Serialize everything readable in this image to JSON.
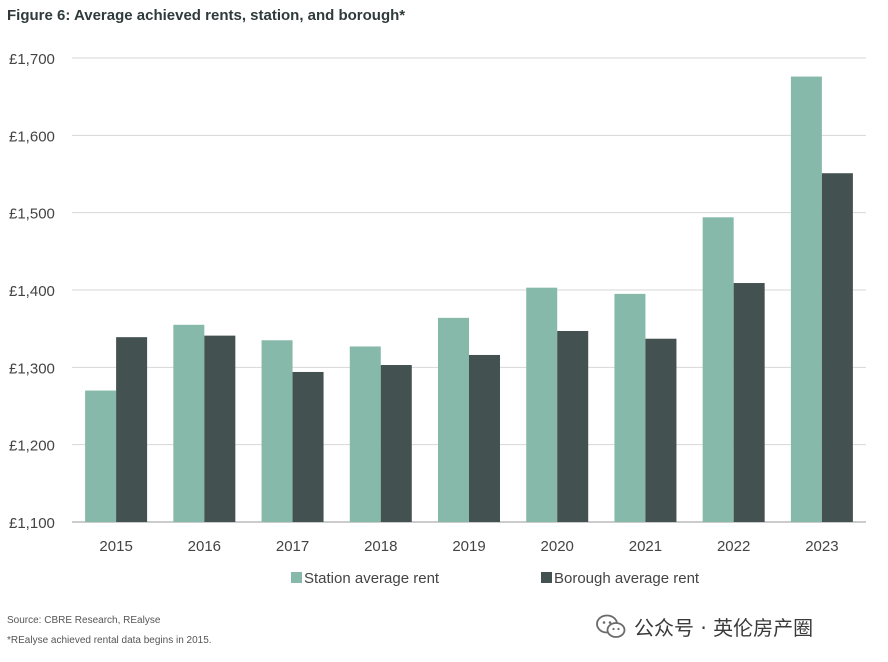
{
  "title": "Figure 6: Average achieved rents, station, and borough*",
  "source": "Source: CBRE Research, REalyse",
  "footnote": "*REalyse achieved rental data begins in 2015.",
  "watermark": {
    "text": "公众号 · 英伦房产圈",
    "icon": "wechat-icon"
  },
  "colors": {
    "station": "#86b9aa",
    "borough": "#435150",
    "grid": "#d7d7d7",
    "axis_text": "#444444"
  },
  "chart_data": {
    "type": "bar",
    "title": "Figure 6: Average achieved rents, station, and borough*",
    "xlabel": "",
    "ylabel": "",
    "categories": [
      "2015",
      "2016",
      "2017",
      "2018",
      "2019",
      "2020",
      "2021",
      "2022",
      "2023"
    ],
    "series": [
      {
        "name": "Station average rent",
        "color": "#86b9aa",
        "values": [
          1270,
          1355,
          1335,
          1327,
          1364,
          1403,
          1395,
          1494,
          1676
        ]
      },
      {
        "name": "Borough average rent",
        "color": "#435150",
        "values": [
          1339,
          1341,
          1294,
          1303,
          1316,
          1347,
          1337,
          1409,
          1551
        ]
      }
    ],
    "ylim": [
      1100,
      1700
    ],
    "yticks": [
      1100,
      1200,
      1300,
      1400,
      1500,
      1600,
      1700
    ],
    "ytick_labels": [
      "£1,100",
      "£1,200",
      "£1,300",
      "£1,400",
      "£1,500",
      "£1,600",
      "£1,700"
    ],
    "grid": true,
    "legend_position": "bottom-center"
  }
}
